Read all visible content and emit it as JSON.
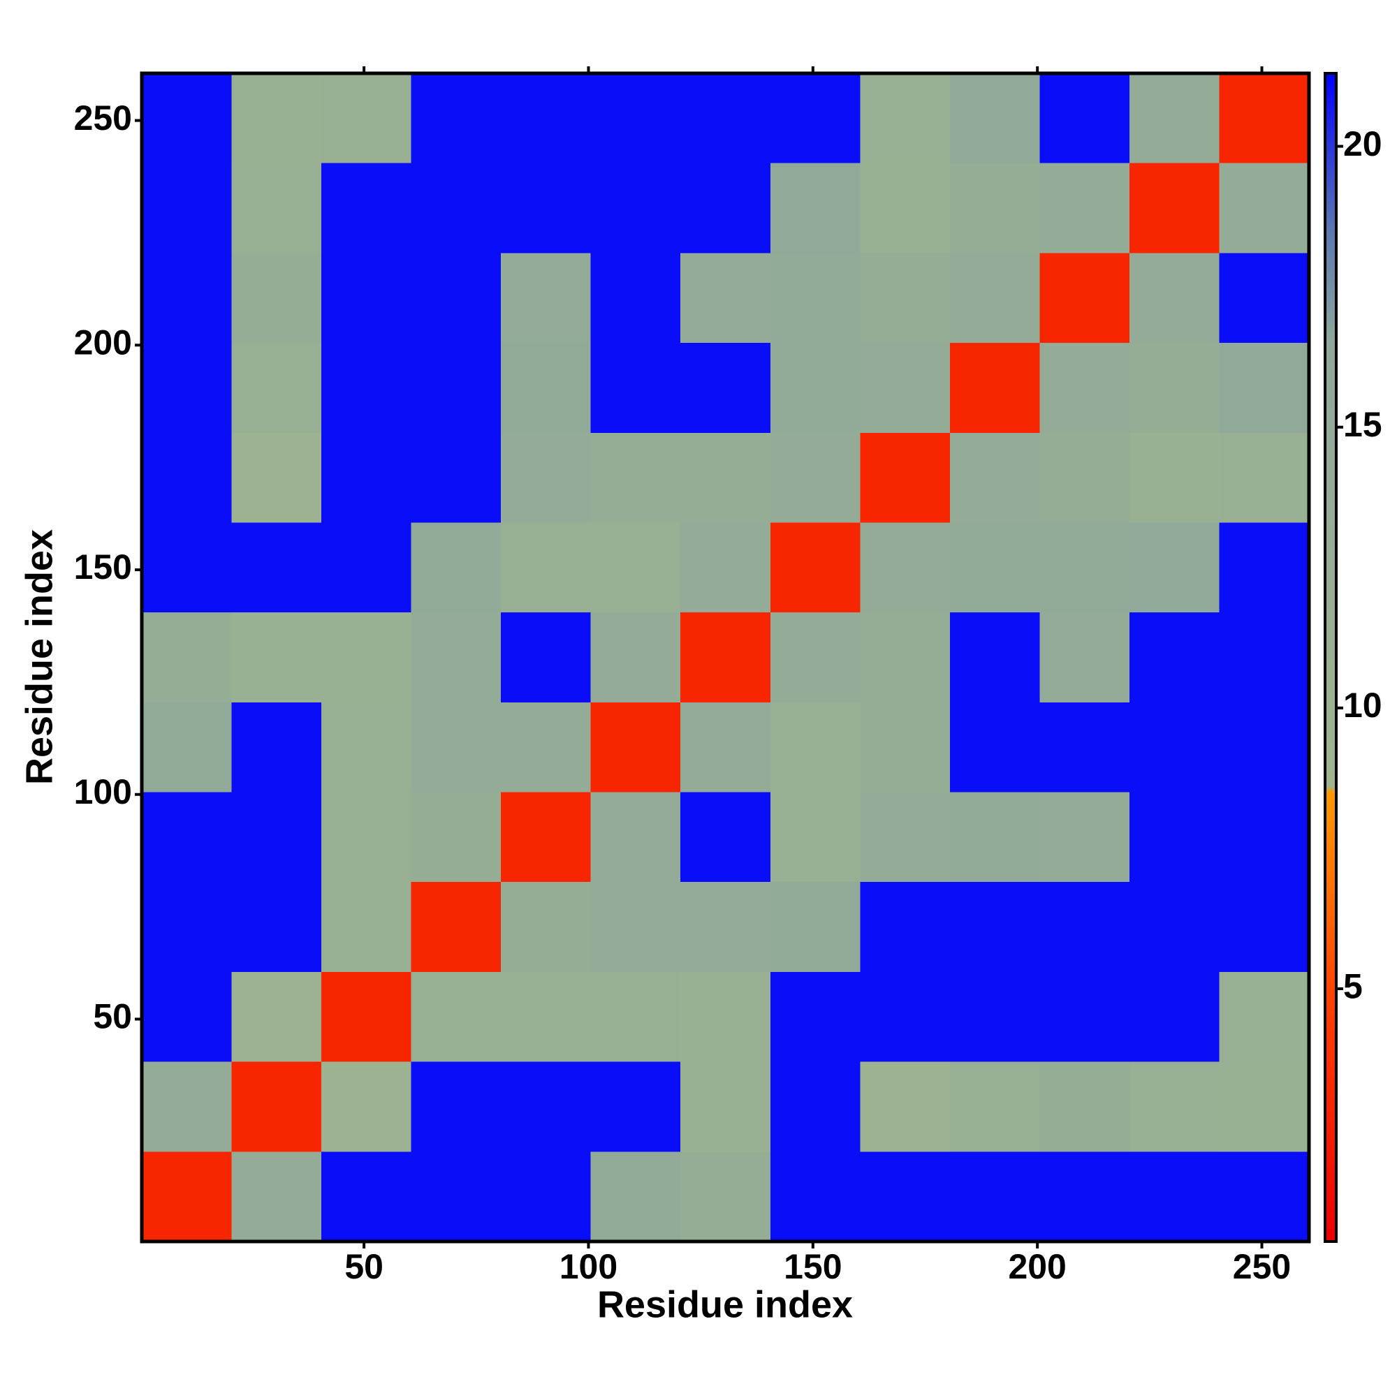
{
  "chart_data": {
    "type": "heatmap",
    "x_label": "Residue index",
    "y_label": "Residue index",
    "xbins": [
      0.5,
      20.5,
      40.5,
      60.5,
      80.5,
      100.5,
      120.5,
      140.5,
      160.5,
      180.5,
      200.5,
      220.5,
      240.5,
      260.5
    ],
    "ybins": [
      0.5,
      20.5,
      40.5,
      60.5,
      80.5,
      100.5,
      120.5,
      140.5,
      160.5,
      180.5,
      200.5,
      220.5,
      240.5,
      260.5
    ],
    "z": [
      [
        3,
        14,
        21,
        21,
        21,
        15,
        13,
        21,
        21,
        21,
        21,
        21,
        21
      ],
      [
        14,
        3,
        10,
        21,
        21,
        21,
        11,
        21,
        10,
        12,
        13,
        12,
        11
      ],
      [
        21,
        10,
        3,
        12,
        12,
        12,
        11,
        21,
        21,
        21,
        21,
        21,
        12
      ],
      [
        21,
        21,
        12,
        3,
        13,
        14,
        14,
        15,
        21,
        21,
        21,
        21,
        21
      ],
      [
        21,
        21,
        12,
        13,
        3,
        14,
        21,
        12,
        14,
        15,
        14,
        21,
        21
      ],
      [
        15,
        21,
        12,
        14,
        14,
        3,
        14,
        12,
        13,
        21,
        21,
        21,
        21
      ],
      [
        13,
        11,
        11,
        14,
        21,
        14,
        3,
        14,
        13,
        21,
        14,
        21,
        21
      ],
      [
        21,
        21,
        21,
        15,
        12,
        12,
        14,
        3,
        14,
        15,
        15,
        16,
        21
      ],
      [
        21,
        10,
        21,
        21,
        14,
        13,
        13,
        14,
        3,
        14,
        13,
        11,
        12
      ],
      [
        21,
        12,
        21,
        21,
        15,
        21,
        21,
        15,
        14,
        3,
        14,
        13,
        16
      ],
      [
        21,
        13,
        21,
        21,
        14,
        21,
        14,
        15,
        13,
        14,
        3,
        14,
        21
      ],
      [
        21,
        12,
        21,
        21,
        21,
        21,
        21,
        16,
        11,
        13,
        14,
        3,
        14
      ],
      [
        21,
        11,
        12,
        21,
        21,
        21,
        21,
        21,
        12,
        16,
        21,
        14,
        3
      ]
    ],
    "xlim": [
      0.5,
      260.5
    ],
    "ylim": [
      0.5,
      260.5
    ],
    "xticks": [
      50,
      100,
      150,
      200,
      250
    ],
    "yticks": [
      50,
      100,
      150,
      200,
      250
    ],
    "zlim": [
      0.5,
      21.3
    ],
    "zticks": [
      5,
      10,
      15,
      20
    ],
    "colorscale": [
      [
        0.5,
        "#ee0000"
      ],
      [
        5,
        "#ff4400"
      ],
      [
        8.5,
        "#ff9900"
      ],
      [
        8.6,
        "#9fb48f"
      ],
      [
        16.5,
        "#8fa89a"
      ],
      [
        18.5,
        "#5a78b0"
      ],
      [
        21.3,
        "#0000ff"
      ]
    ]
  }
}
